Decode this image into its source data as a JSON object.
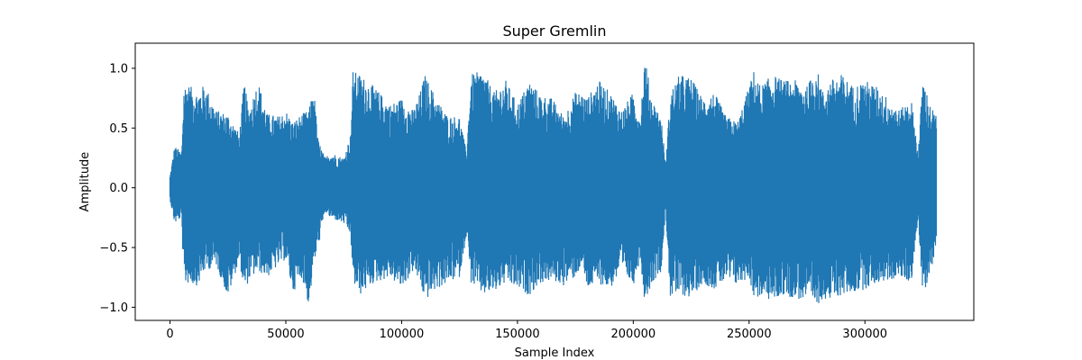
{
  "chart_data": {
    "type": "line",
    "title": "Super Gremlin",
    "xlabel": "Sample Index",
    "ylabel": "Amplitude",
    "xlim": [
      -15000,
      347000
    ],
    "ylim": [
      -1.11,
      1.21
    ],
    "x_ticks": [
      0,
      50000,
      100000,
      150000,
      200000,
      250000,
      300000
    ],
    "x_tick_labels": [
      "0",
      "50000",
      "100000",
      "150000",
      "200000",
      "250000",
      "300000"
    ],
    "y_ticks": [
      -1.0,
      -0.5,
      0.0,
      0.5,
      1.0
    ],
    "y_tick_labels": [
      "−1.0",
      "−0.5",
      "0.0",
      "0.5",
      "1.0"
    ],
    "grid": false,
    "series": [
      {
        "color": "#1f77b4",
        "sample_count": 331000,
        "envelope": {
          "x": [
            0,
            2000,
            5000,
            6000,
            7000,
            12000,
            15000,
            20000,
            25000,
            30000,
            32000,
            34000,
            38000,
            42000,
            47000,
            50000,
            53000,
            57000,
            60000,
            62000,
            64000,
            67000,
            69000,
            75000,
            78000,
            79000,
            82000,
            88000,
            95000,
            100000,
            105000,
            108000,
            110000,
            115000,
            120000,
            125000,
            128000,
            130000,
            135000,
            140000,
            145000,
            150000,
            155000,
            160000,
            165000,
            170000,
            175000,
            178000,
            180000,
            185000,
            190000,
            195000,
            200000,
            203000,
            205000,
            208000,
            212000,
            214000,
            216000,
            220000,
            225000,
            230000,
            235000,
            240000,
            245000,
            250000,
            252000,
            255000,
            260000,
            265000,
            270000,
            275000,
            279000,
            282000,
            285000,
            290000,
            295000,
            300000,
            305000,
            310000,
            315000,
            320000,
            323000,
            325000,
            328000,
            331000
          ],
          "upper": [
            0.1,
            0.35,
            0.3,
            0.85,
            0.88,
            0.8,
            0.87,
            0.65,
            0.62,
            0.45,
            0.9,
            0.65,
            0.9,
            0.62,
            0.6,
            0.65,
            0.55,
            0.62,
            0.65,
            0.85,
            0.4,
            0.25,
            0.3,
            0.25,
            0.45,
            0.98,
            0.95,
            0.85,
            0.7,
            0.75,
            0.65,
            0.8,
            0.95,
            0.75,
            0.6,
            0.6,
            0.3,
            0.95,
            0.98,
            0.8,
            0.9,
            0.7,
            0.9,
            0.78,
            0.75,
            0.6,
            0.8,
            0.8,
            0.75,
            0.9,
            0.8,
            0.65,
            0.8,
            0.6,
            1.1,
            0.75,
            0.6,
            0.2,
            0.8,
            0.95,
            0.92,
            0.75,
            0.8,
            0.6,
            0.55,
            0.85,
            0.98,
            0.85,
            0.95,
            0.9,
            0.9,
            0.85,
            1.02,
            0.8,
            0.9,
            0.95,
            0.85,
            0.9,
            0.85,
            0.75,
            0.65,
            0.75,
            0.3,
            0.93,
            0.7,
            0.6
          ],
          "lower": [
            -0.1,
            -0.3,
            -0.25,
            -0.85,
            -0.8,
            -0.82,
            -0.7,
            -0.65,
            -0.92,
            -0.6,
            -0.88,
            -0.78,
            -0.7,
            -0.75,
            -0.65,
            -0.6,
            -0.88,
            -0.75,
            -1.0,
            -0.65,
            -0.5,
            -0.2,
            -0.25,
            -0.3,
            -0.4,
            -0.8,
            -0.9,
            -0.8,
            -0.75,
            -0.85,
            -0.7,
            -0.8,
            -0.95,
            -0.85,
            -0.8,
            -0.75,
            -0.4,
            -0.8,
            -0.9,
            -0.88,
            -0.8,
            -0.85,
            -0.9,
            -0.8,
            -0.78,
            -0.82,
            -0.75,
            -0.65,
            -0.85,
            -0.8,
            -0.85,
            -0.7,
            -0.82,
            -0.6,
            -0.96,
            -0.8,
            -0.7,
            -0.2,
            -0.92,
            -0.9,
            -0.92,
            -0.8,
            -0.85,
            -0.78,
            -0.82,
            -0.75,
            -0.92,
            -0.92,
            -0.95,
            -0.9,
            -0.93,
            -0.95,
            -1.0,
            -0.92,
            -0.95,
            -0.9,
            -0.88,
            -0.85,
            -0.8,
            -0.78,
            -0.75,
            -0.8,
            -0.25,
            -0.95,
            -0.7,
            -0.55
          ]
        }
      }
    ]
  }
}
